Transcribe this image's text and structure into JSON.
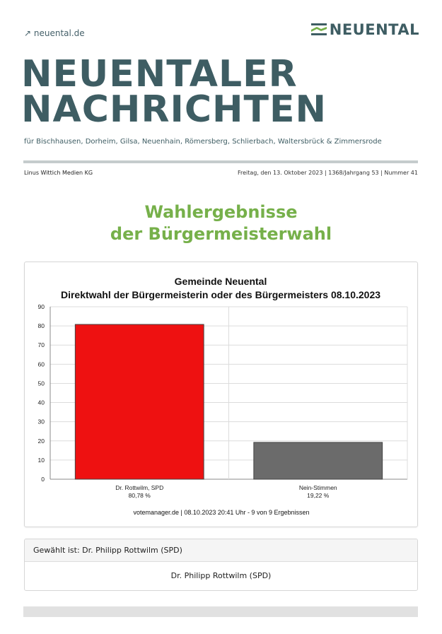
{
  "header": {
    "link_text": "↗ neuental.de",
    "logo_text": "NEUENTAL",
    "title_line1": "NEUENTALER",
    "title_line2": "NACHRICHTEN",
    "subtitle": "für Bischhausen, Dorheim, Gilsa, Neuenhain, Römersberg, Schlierbach, Waltersbrück & Zimmersrode",
    "publisher": "Linus Wittich Medien KG",
    "issue_info": "Freitag, den 13. Oktober 2023  |  1368/Jahrgang 53  |  Nummer 41",
    "colors": {
      "brand": "#3e5d63",
      "accent": "#76b04a"
    }
  },
  "article": {
    "headline_line1": "Wahlergebnisse",
    "headline_line2": "der Bürgermeisterwahl"
  },
  "chart_data": {
    "type": "bar",
    "title": "Gemeinde Neuental",
    "subtitle": "Direktwahl der Bürgermeisterin oder des Bürgermeisters 08.10.2023",
    "categories": [
      "Dr. Rottwilm, SPD",
      "Nein-Stimmen"
    ],
    "value_labels": [
      "80,78 %",
      "19,22 %"
    ],
    "values": [
      80.78,
      19.22
    ],
    "colors": [
      "#ee1111",
      "#6b6b6b"
    ],
    "ylim": [
      0,
      90
    ],
    "yticks": [
      0,
      10,
      20,
      30,
      40,
      50,
      60,
      70,
      80,
      90
    ],
    "grid": true,
    "footer": "votemanager.de | 08.10.2023 20:41 Uhr - 9 von 9 Ergebnissen"
  },
  "result": {
    "heading": "Gewählt ist: Dr. Philipp Rottwilm (SPD)",
    "winner": "Dr. Philipp Rottwilm (SPD)"
  }
}
